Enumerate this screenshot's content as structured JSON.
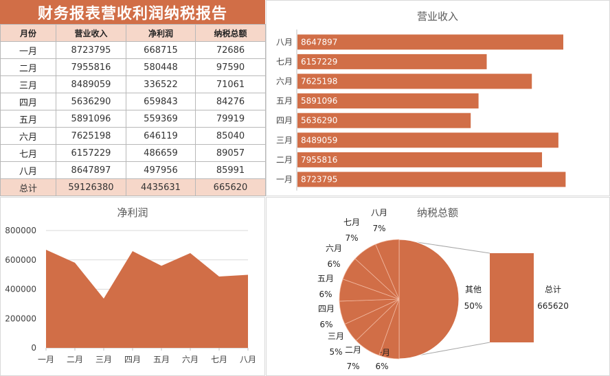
{
  "report": {
    "title": "财务报表营收利润纳税报告",
    "headers": [
      "月份",
      "营业收入",
      "净利润",
      "纳税总额"
    ],
    "rows": [
      [
        "一月",
        "8723795",
        "668715",
        "72686"
      ],
      [
        "二月",
        "7955816",
        "580448",
        "97590"
      ],
      [
        "三月",
        "8489059",
        "336522",
        "71061"
      ],
      [
        "四月",
        "5636290",
        "659843",
        "84276"
      ],
      [
        "五月",
        "5891096",
        "559369",
        "79919"
      ],
      [
        "六月",
        "7625198",
        "646119",
        "85040"
      ],
      [
        "七月",
        "6157229",
        "486659",
        "89057"
      ],
      [
        "八月",
        "8647897",
        "497956",
        "85991"
      ]
    ],
    "total": [
      "总计",
      "59126380",
      "4435631",
      "665620"
    ]
  },
  "colors": {
    "accent": "#d16e47",
    "header_fill": "#f6d7c9",
    "grid": "#d9d9d9"
  },
  "chart_data": [
    {
      "type": "bar",
      "orientation": "horizontal",
      "title": "营业收入",
      "categories": [
        "一月",
        "二月",
        "三月",
        "四月",
        "五月",
        "六月",
        "七月",
        "八月"
      ],
      "values": [
        8723795,
        7955816,
        8489059,
        5636290,
        5891096,
        7625198,
        6157229,
        8647897
      ],
      "data_labels": true,
      "grid": false
    },
    {
      "type": "area",
      "title": "净利润",
      "categories": [
        "一月",
        "二月",
        "三月",
        "四月",
        "五月",
        "六月",
        "七月",
        "八月"
      ],
      "values": [
        668715,
        580448,
        336522,
        659843,
        559369,
        646119,
        486659,
        497956
      ],
      "ylim": [
        0,
        800000
      ],
      "yticks": [
        "0",
        "200000",
        "400000",
        "600000",
        "800000"
      ],
      "grid": true
    },
    {
      "type": "pie",
      "subtype": "pie-of-bar",
      "title": "纳税总额",
      "slices": [
        {
          "label": "一月",
          "pct": "6%"
        },
        {
          "label": "二月",
          "pct": "7%"
        },
        {
          "label": "三月",
          "pct": "5%"
        },
        {
          "label": "四月",
          "pct": "6%"
        },
        {
          "label": "五月",
          "pct": "6%"
        },
        {
          "label": "六月",
          "pct": "6%"
        },
        {
          "label": "七月",
          "pct": "7%"
        },
        {
          "label": "八月",
          "pct": "7%"
        },
        {
          "label": "其他",
          "pct": "50%"
        }
      ],
      "values": [
        72686,
        97590,
        71061,
        84276,
        79919,
        85040,
        89057,
        85991
      ],
      "secondary": {
        "label": "总计",
        "value": "665620"
      }
    }
  ]
}
